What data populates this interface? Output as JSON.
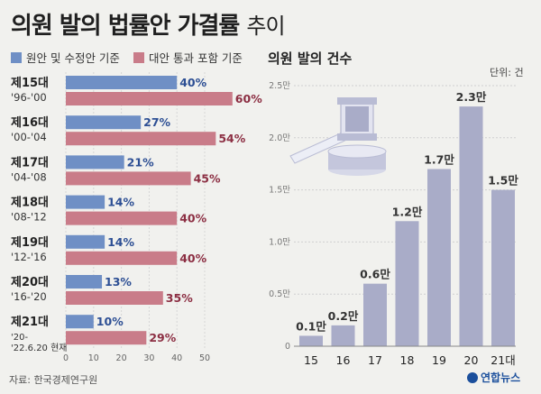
{
  "title_bold": "의원 발의 법률안 가결률",
  "title_light": "추이",
  "legend": [
    {
      "label": "원안 및 수정안 기준",
      "color": "#6f8fc5"
    },
    {
      "label": "대안 통과 포함 기준",
      "color": "#c97c89"
    }
  ],
  "right_title": "의원 발의 건수",
  "unit": "단위: 건",
  "source": "자료: 한국경제연구원",
  "credit": "연합뉴스",
  "colors": {
    "blue": "#6f8fc5",
    "pink": "#c97c89",
    "lav": "#a9acc8",
    "blue_text": "#2d4f94",
    "pink_text": "#8c2f43"
  },
  "chart_data": [
    {
      "type": "bar",
      "orientation": "horizontal",
      "categories": [
        "제15대",
        "제16대",
        "제17대",
        "제18대",
        "제19대",
        "제20대",
        "제21대"
      ],
      "periods": [
        "'96-'00",
        "'00-'04",
        "'04-'08",
        "'08-'12",
        "'12-'16",
        "'16-'20",
        "'20-\n'22.6.20 현재"
      ],
      "series": [
        {
          "name": "원안 및 수정안 기준",
          "values": [
            40,
            27,
            21,
            14,
            14,
            13,
            10
          ]
        },
        {
          "name": "대안 통과 포함 기준",
          "values": [
            60,
            54,
            45,
            40,
            40,
            35,
            29
          ]
        }
      ],
      "value_labels": {
        "blue": [
          "40%",
          "27%",
          "21%",
          "14%",
          "14%",
          "13%",
          "10%"
        ],
        "pink": [
          "60%",
          "54%",
          "45%",
          "40%",
          "40%",
          "35%",
          "29%"
        ]
      },
      "xticks": [
        "0",
        "10",
        "20",
        "30",
        "40",
        "50"
      ],
      "xlim": [
        0,
        60
      ]
    },
    {
      "type": "bar",
      "categories": [
        "15",
        "16",
        "17",
        "18",
        "19",
        "20",
        "21대"
      ],
      "values": [
        0.1,
        0.2,
        0.6,
        1.2,
        1.7,
        2.3,
        1.5
      ],
      "value_labels": [
        "0.1만",
        "0.2만",
        "0.6만",
        "1.2만",
        "1.7만",
        "2.3만",
        "1.5만"
      ],
      "yticks": [
        "0",
        "0.5만",
        "1.0만",
        "1.5만",
        "2.0만",
        "2.5만"
      ],
      "ylim": [
        0,
        2.5
      ],
      "ylabel": "건"
    }
  ]
}
